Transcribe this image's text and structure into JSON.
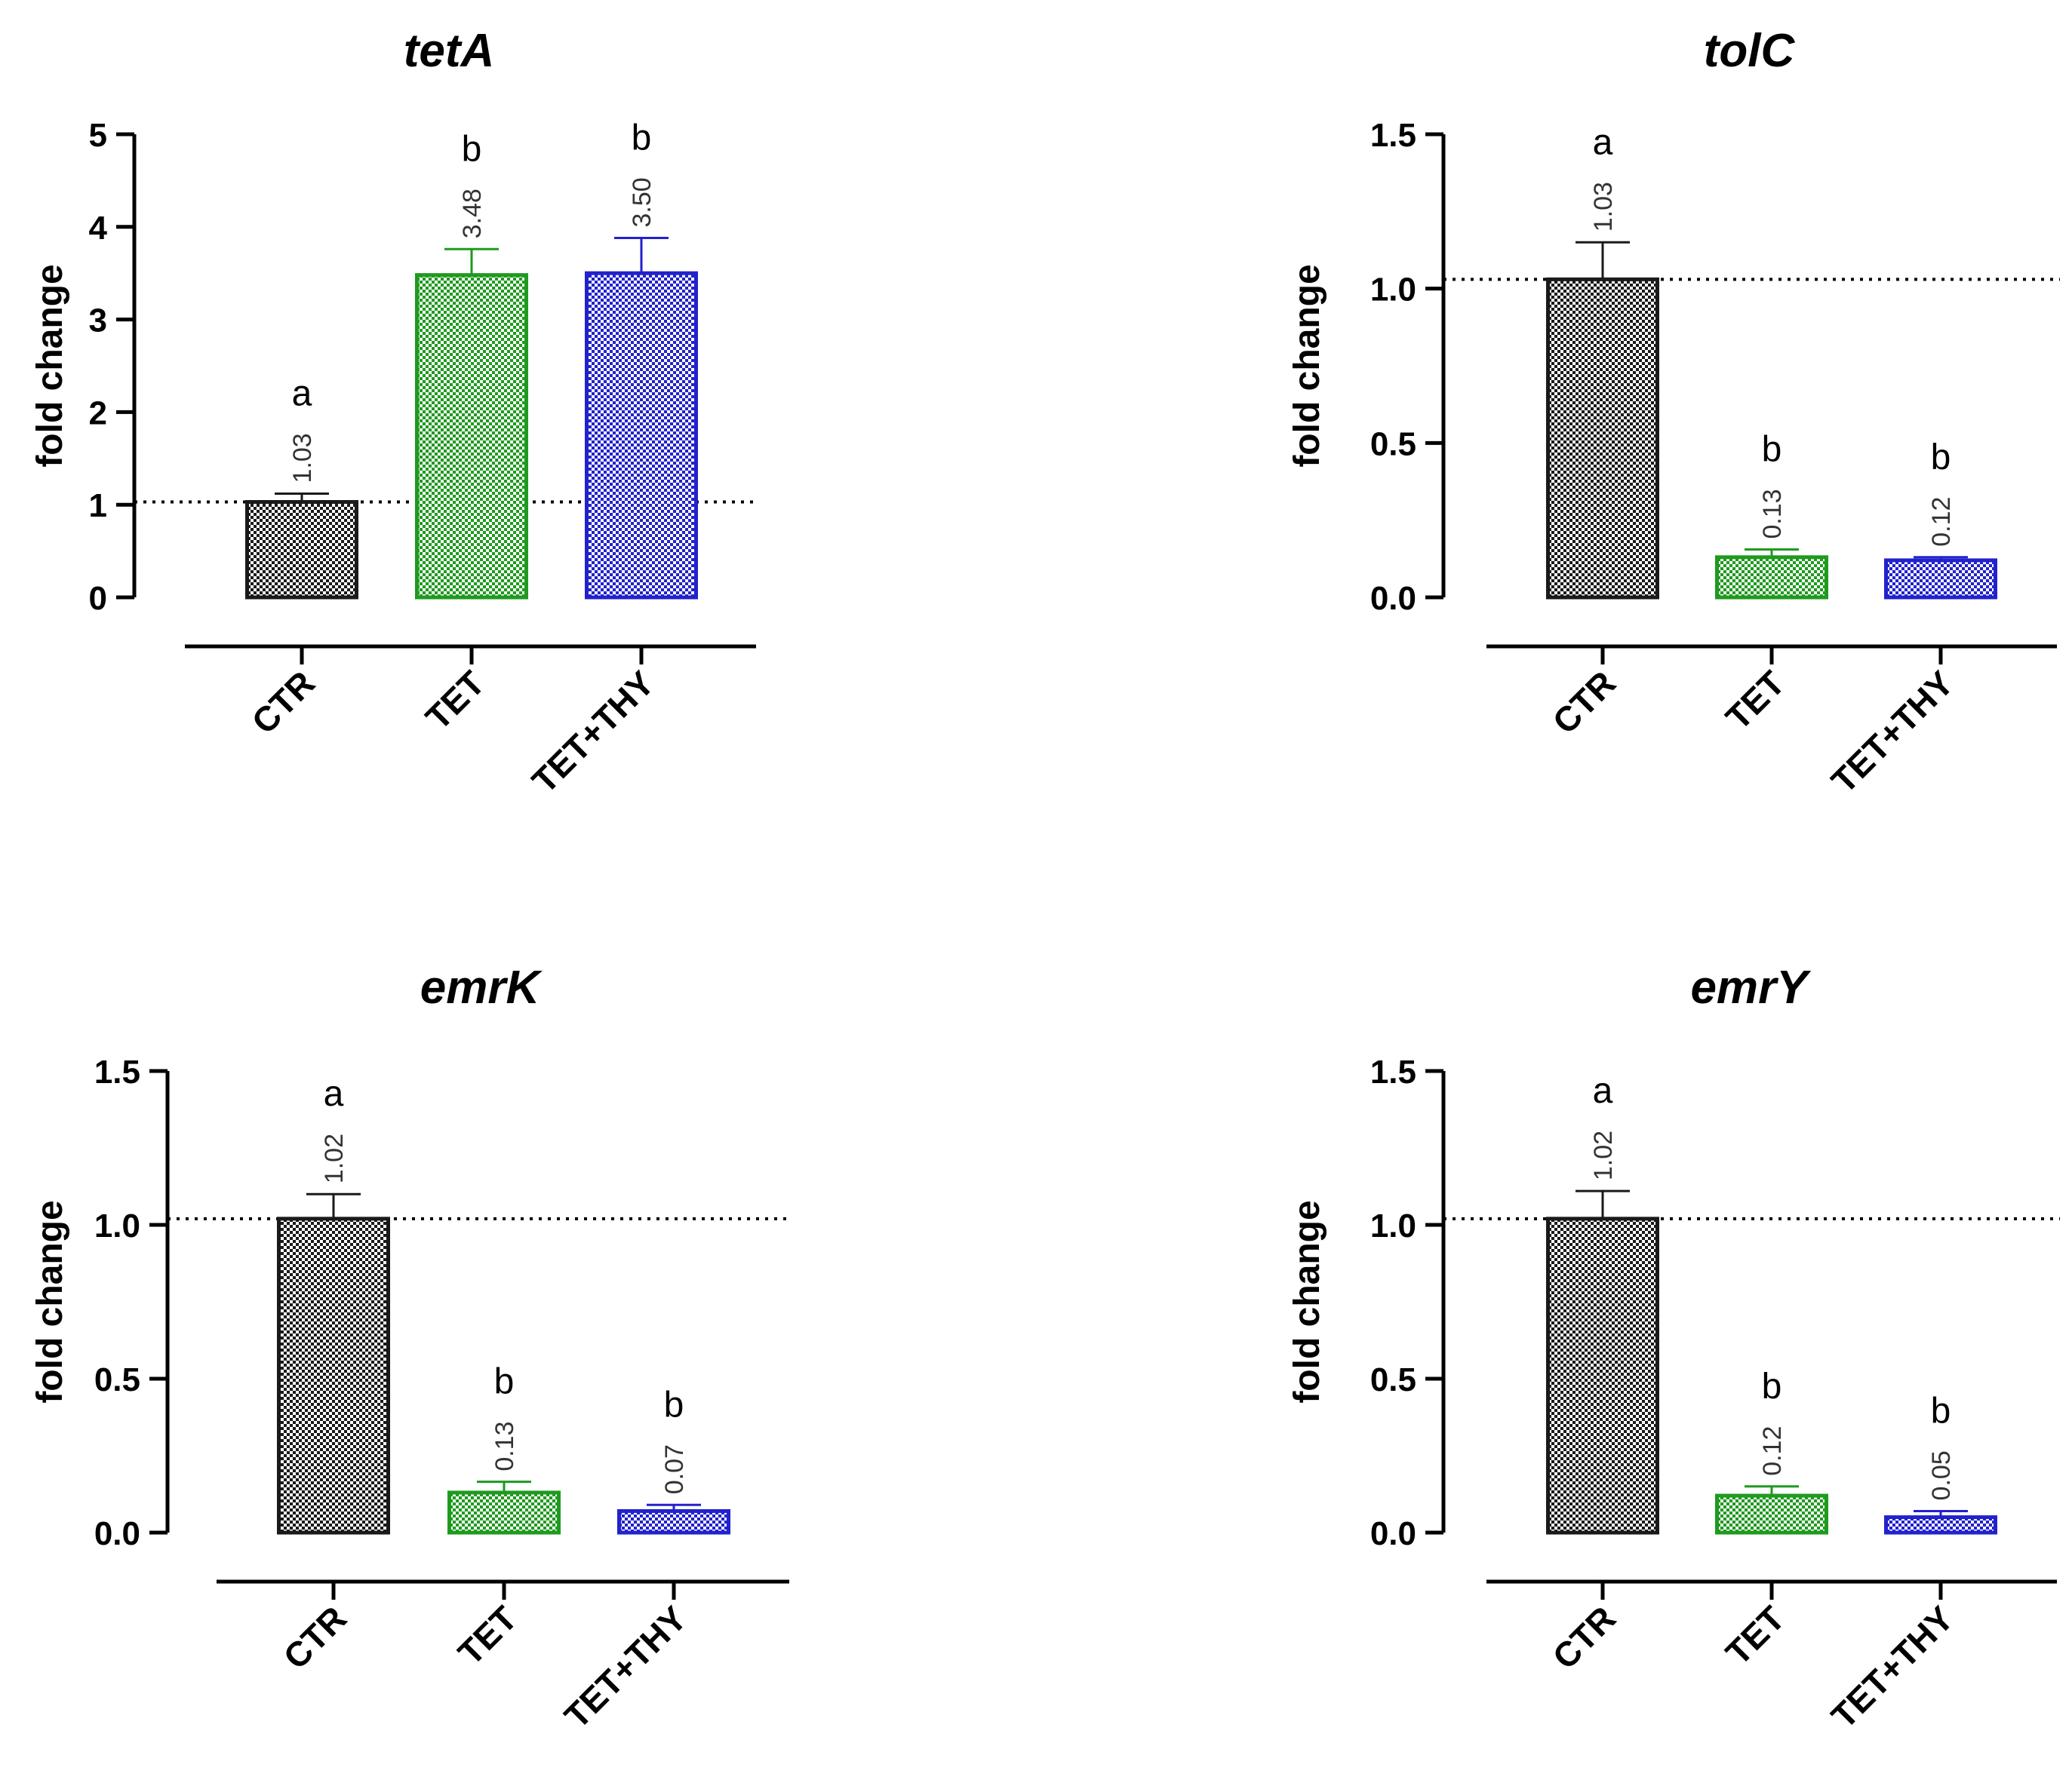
{
  "chart_data": [
    {
      "type": "bar",
      "title": "tetA",
      "ylabel": "fold change",
      "ylim": [
        0,
        5
      ],
      "yticks": [
        "0",
        "1",
        "2",
        "3",
        "4",
        "5"
      ],
      "reference_line": 1.03,
      "categories": [
        "CTR",
        "TET",
        "TET+THY"
      ],
      "values": [
        1.03,
        3.48,
        3.5
      ],
      "errors": [
        0.09,
        0.28,
        0.38
      ],
      "value_labels": [
        "1.03",
        "3.48",
        "3.50"
      ],
      "significance": [
        "a",
        "b",
        "b"
      ],
      "colors": [
        "#1a1a1a",
        "#1f9a1f",
        "#2222cc"
      ]
    },
    {
      "type": "bar",
      "title": "tolC",
      "ylabel": "fold change",
      "ylim": [
        0,
        1.5
      ],
      "yticks": [
        "0.0",
        "0.5",
        "1.0",
        "1.5"
      ],
      "reference_line": 1.03,
      "categories": [
        "CTR",
        "TET",
        "TET+THY"
      ],
      "values": [
        1.03,
        0.13,
        0.12
      ],
      "errors": [
        0.12,
        0.025,
        0.01
      ],
      "value_labels": [
        "1.03",
        "0.13",
        "0.12"
      ],
      "significance": [
        "a",
        "b",
        "b"
      ],
      "colors": [
        "#1a1a1a",
        "#1f9a1f",
        "#2222cc"
      ]
    },
    {
      "type": "bar",
      "title": "emrK",
      "ylabel": "fold change",
      "ylim": [
        0,
        1.5
      ],
      "yticks": [
        "0.0",
        "0.5",
        "1.0",
        "1.5"
      ],
      "reference_line": 1.02,
      "categories": [
        "CTR",
        "TET",
        "TET+THY"
      ],
      "values": [
        1.02,
        0.13,
        0.07
      ],
      "errors": [
        0.08,
        0.035,
        0.02
      ],
      "value_labels": [
        "1.02",
        "0.13",
        "0.07"
      ],
      "significance": [
        "a",
        "b",
        "b"
      ],
      "colors": [
        "#1a1a1a",
        "#1f9a1f",
        "#2222cc"
      ]
    },
    {
      "type": "bar",
      "title": "emrY",
      "ylabel": "fold change",
      "ylim": [
        0,
        1.5
      ],
      "yticks": [
        "0.0",
        "0.5",
        "1.0",
        "1.5"
      ],
      "reference_line": 1.02,
      "categories": [
        "CTR",
        "TET",
        "TET+THY"
      ],
      "values": [
        1.02,
        0.12,
        0.05
      ],
      "errors": [
        0.09,
        0.03,
        0.02
      ],
      "value_labels": [
        "1.02",
        "0.12",
        "0.05"
      ],
      "significance": [
        "a",
        "b",
        "b"
      ],
      "colors": [
        "#1a1a1a",
        "#1f9a1f",
        "#2222cc"
      ]
    }
  ]
}
